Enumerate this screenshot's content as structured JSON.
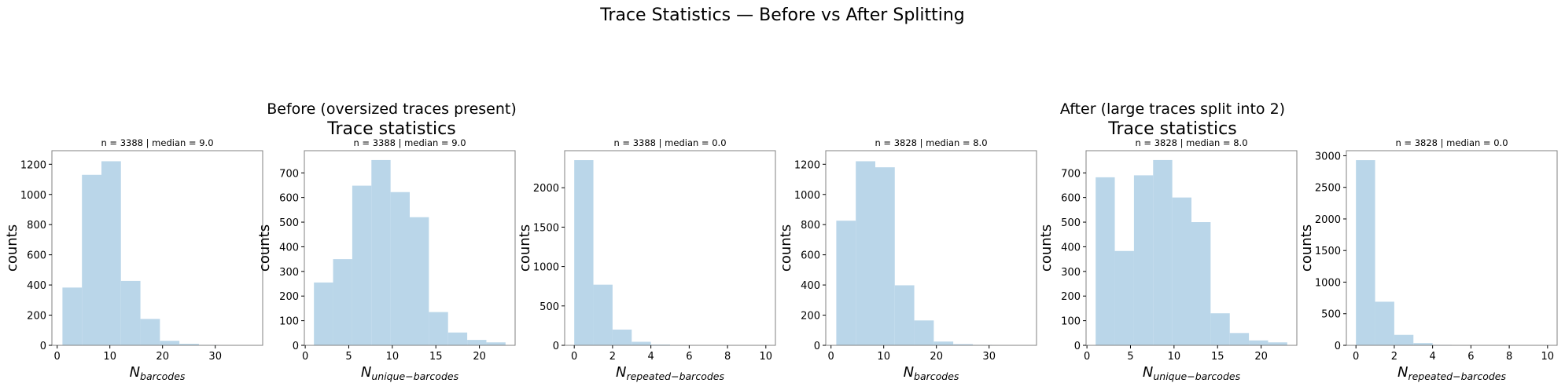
{
  "figure": {
    "suptitle": "Trace Statistics — Before vs After Splitting"
  },
  "groups": [
    {
      "title": "Before (oversized traces present)",
      "subtitle": "Trace statistics"
    },
    {
      "title": "After (large traces split into 2)",
      "subtitle": "Trace statistics"
    }
  ],
  "style": {
    "bar_color": "#bad6e9",
    "axis_color": "#808080"
  },
  "chart_data": [
    {
      "type": "bar",
      "group": 0,
      "title": "n = 3388 | median = 9.0",
      "xlabel_base": "N",
      "xlabel_sub": "barcodes",
      "ylabel": "counts",
      "xlim": [
        -1,
        39
      ],
      "ylim": [
        0,
        1290
      ],
      "xticks": [
        0,
        10,
        20,
        30
      ],
      "yticks": [
        0,
        200,
        400,
        600,
        800,
        1000,
        1200
      ],
      "bins": [
        [
          1,
          4.7
        ],
        [
          4.7,
          8.4
        ],
        [
          8.4,
          12.1
        ],
        [
          12.1,
          15.8
        ],
        [
          15.8,
          19.5
        ],
        [
          19.5,
          23.2
        ],
        [
          23.2,
          26.9
        ],
        [
          26.9,
          30.6
        ],
        [
          30.6,
          34.3
        ],
        [
          34.3,
          38
        ]
      ],
      "values": [
        383,
        1130,
        1220,
        427,
        175,
        30,
        10,
        3,
        2,
        1
      ]
    },
    {
      "type": "bar",
      "group": 0,
      "title": "n = 3388 | median = 9.0",
      "xlabel_base": "N",
      "xlabel_sub": "unique−barcodes",
      "ylabel": "counts",
      "xlim": [
        -0.1,
        24.1
      ],
      "ylim": [
        0,
        790
      ],
      "xticks": [
        0,
        5,
        10,
        15,
        20
      ],
      "yticks": [
        0,
        100,
        200,
        300,
        400,
        500,
        600,
        700
      ],
      "bins": [
        [
          1,
          3.2
        ],
        [
          3.2,
          5.4
        ],
        [
          5.4,
          7.6
        ],
        [
          7.6,
          9.8
        ],
        [
          9.8,
          12
        ],
        [
          12,
          14.2
        ],
        [
          14.2,
          16.4
        ],
        [
          16.4,
          18.6
        ],
        [
          18.6,
          20.8
        ],
        [
          20.8,
          23
        ]
      ],
      "values": [
        255,
        350,
        648,
        752,
        622,
        520,
        135,
        52,
        22,
        12
      ]
    },
    {
      "type": "bar",
      "group": 0,
      "title": "n = 3388 | median = 0.0",
      "xlabel_base": "N",
      "xlabel_sub": "repeated−barcodes",
      "ylabel": "counts",
      "xlim": [
        -0.5,
        10.5
      ],
      "ylim": [
        0,
        2470
      ],
      "xticks": [
        0,
        2,
        4,
        6,
        8,
        10
      ],
      "yticks": [
        0,
        500,
        1000,
        1500,
        2000
      ],
      "bins": [
        [
          0,
          1
        ],
        [
          1,
          2
        ],
        [
          2,
          3
        ],
        [
          3,
          4
        ],
        [
          4,
          5
        ],
        [
          5,
          6
        ],
        [
          6,
          7
        ],
        [
          7,
          8
        ],
        [
          8,
          9
        ],
        [
          9,
          10
        ]
      ],
      "values": [
        2350,
        770,
        200,
        45,
        10,
        5,
        3,
        2,
        1,
        1
      ]
    },
    {
      "type": "bar",
      "group": 1,
      "title": "n = 3828 | median = 8.0",
      "xlabel_base": "N",
      "xlabel_sub": "barcodes",
      "ylabel": "counts",
      "xlim": [
        -1,
        39
      ],
      "ylim": [
        0,
        1290
      ],
      "xticks": [
        0,
        10,
        20,
        30
      ],
      "yticks": [
        0,
        200,
        400,
        600,
        800,
        1000,
        1200
      ],
      "bins": [
        [
          1,
          4.7
        ],
        [
          4.7,
          8.4
        ],
        [
          8.4,
          12.1
        ],
        [
          12.1,
          15.8
        ],
        [
          15.8,
          19.5
        ],
        [
          19.5,
          23.2
        ],
        [
          23.2,
          26.9
        ],
        [
          26.9,
          30.6
        ],
        [
          30.6,
          34.3
        ],
        [
          34.3,
          38
        ]
      ],
      "values": [
        826,
        1220,
        1180,
        398,
        165,
        25,
        8,
        3,
        2,
        1
      ]
    },
    {
      "type": "bar",
      "group": 1,
      "title": "n = 3828 | median = 8.0",
      "xlabel_base": "N",
      "xlabel_sub": "unique−barcodes",
      "ylabel": "counts",
      "xlim": [
        -0.1,
        24.1
      ],
      "ylim": [
        0,
        790
      ],
      "xticks": [
        0,
        5,
        10,
        15,
        20
      ],
      "yticks": [
        0,
        100,
        200,
        300,
        400,
        500,
        600,
        700
      ],
      "bins": [
        [
          1,
          3.2
        ],
        [
          3.2,
          5.4
        ],
        [
          5.4,
          7.6
        ],
        [
          7.6,
          9.8
        ],
        [
          9.8,
          12
        ],
        [
          12,
          14.2
        ],
        [
          14.2,
          16.4
        ],
        [
          16.4,
          18.6
        ],
        [
          18.6,
          20.8
        ],
        [
          20.8,
          23
        ]
      ],
      "values": [
        682,
        383,
        690,
        752,
        600,
        500,
        130,
        50,
        20,
        12
      ]
    },
    {
      "type": "bar",
      "group": 1,
      "title": "n = 3828 | median = 0.0",
      "xlabel_base": "N",
      "xlabel_sub": "repeated−barcodes",
      "ylabel": "counts",
      "xlim": [
        -0.5,
        10.5
      ],
      "ylim": [
        0,
        3080
      ],
      "xticks": [
        0,
        2,
        4,
        6,
        8,
        10
      ],
      "yticks": [
        0,
        500,
        1000,
        1500,
        2000,
        2500,
        3000
      ],
      "bins": [
        [
          0,
          1
        ],
        [
          1,
          2
        ],
        [
          2,
          3
        ],
        [
          3,
          4
        ],
        [
          4,
          5
        ],
        [
          5,
          6
        ],
        [
          6,
          7
        ],
        [
          7,
          8
        ],
        [
          8,
          9
        ],
        [
          9,
          10
        ]
      ],
      "values": [
        2930,
        690,
        165,
        35,
        8,
        4,
        2,
        1,
        1,
        1
      ]
    }
  ]
}
